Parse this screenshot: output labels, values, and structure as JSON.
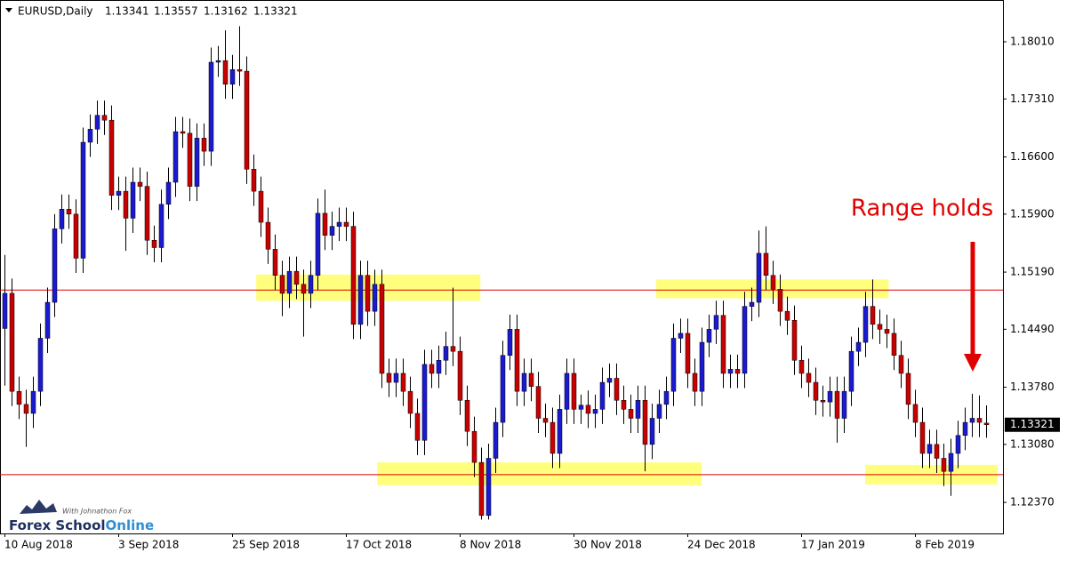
{
  "chart_data": {
    "type": "candlestick",
    "symbol": "EURUSD,Daily",
    "categories": [
      "10 Aug 2018",
      null,
      null,
      null,
      null,
      null,
      null,
      null,
      null,
      null,
      null,
      null,
      null,
      null,
      null,
      null,
      "3 Sep 2018",
      null,
      null,
      null,
      null,
      null,
      null,
      null,
      null,
      null,
      null,
      null,
      null,
      null,
      null,
      null,
      "25 Sep 2018",
      null,
      null,
      null,
      null,
      null,
      null,
      null,
      null,
      null,
      null,
      null,
      null,
      null,
      null,
      null,
      "17 Oct 2018",
      null,
      null,
      null,
      null,
      null,
      null,
      null,
      null,
      null,
      null,
      null,
      null,
      null,
      null,
      null,
      "8 Nov 2018",
      null,
      null,
      null,
      null,
      null,
      null,
      null,
      null,
      null,
      null,
      null,
      null,
      null,
      null,
      null,
      "30 Nov 2018",
      null,
      null,
      null,
      null,
      null,
      null,
      null,
      null,
      null,
      null,
      null,
      null,
      null,
      null,
      null,
      "24 Dec 2018",
      null,
      null,
      null,
      null,
      null,
      null,
      null,
      null,
      null,
      null,
      null,
      null,
      null,
      null,
      null,
      "17 Jan 2019",
      null,
      null,
      null,
      null,
      null,
      null,
      null,
      null,
      null,
      null,
      null,
      null,
      null,
      null,
      null,
      "8 Feb 2019",
      null,
      null,
      null,
      null,
      null,
      null,
      null,
      null,
      null,
      null
    ],
    "open": [
      1.145,
      1.1493,
      1.1373,
      1.1357,
      1.1346,
      1.1373,
      1.1438,
      1.1482,
      1.1572,
      1.1596,
      1.159,
      1.1536,
      1.1678,
      1.1694,
      1.1711,
      1.1705,
      1.1613,
      1.1618,
      1.1585,
      1.1629,
      1.1624,
      1.1558,
      1.1549,
      1.1602,
      1.1629,
      1.1691,
      1.1689,
      1.1624,
      1.1683,
      1.1667,
      1.1776,
      1.1778,
      1.1749,
      1.1767,
      1.1765,
      1.1645,
      1.1618,
      1.158,
      1.1547,
      1.1515,
      1.1493,
      1.152,
      1.1504,
      1.1493,
      1.1515,
      1.1591,
      1.1564,
      1.1575,
      1.158,
      1.1575,
      1.1455,
      1.1515,
      1.1471,
      1.1504,
      1.1395,
      1.1384,
      1.1395,
      1.1373,
      1.1346,
      1.1313,
      1.1406,
      1.1395,
      1.1411,
      1.1428,
      1.1422,
      1.1362,
      1.1324,
      1.1286,
      1.1221,
      1.1291,
      1.1335,
      1.1417,
      1.1449,
      1.1373,
      1.1395,
      1.1379,
      1.134,
      1.1335,
      1.1297,
      1.1351,
      1.1395,
      1.1351,
      1.1356,
      1.1346,
      1.1351,
      1.1384,
      1.1389,
      1.1362,
      1.1351,
      1.134,
      1.1362,
      1.1308,
      1.134,
      1.1357,
      1.1373,
      1.1438,
      1.1444,
      1.1395,
      1.1373,
      1.1433,
      1.1449,
      1.1466,
      1.1395,
      1.14,
      1.1395,
      1.1477,
      1.1482,
      1.1542,
      1.1515,
      1.1498,
      1.1471,
      1.146,
      1.1411,
      1.1395,
      1.1384,
      1.1362,
      1.136,
      1.1373,
      1.134,
      1.1373,
      1.1422,
      1.1433,
      1.1477,
      1.1455,
      1.1449,
      1.1444,
      1.1417,
      1.1395,
      1.1357,
      1.1335,
      1.1297,
      1.1308,
      1.1291,
      1.1275,
      1.1297,
      1.1319,
      1.1335,
      1.134,
      1.13341
    ],
    "high": [
      1.154,
      1.1511,
      1.1391,
      1.1375,
      1.1391,
      1.1456,
      1.15,
      1.159,
      1.1614,
      1.1614,
      1.1608,
      1.1696,
      1.1712,
      1.1729,
      1.1729,
      1.1723,
      1.1636,
      1.1636,
      1.1647,
      1.1647,
      1.1642,
      1.1576,
      1.162,
      1.1647,
      1.1709,
      1.1709,
      1.1707,
      1.1701,
      1.1701,
      1.1794,
      1.1796,
      1.1815,
      1.1785,
      1.182,
      1.1783,
      1.1663,
      1.1636,
      1.1598,
      1.1565,
      1.1533,
      1.1538,
      1.1538,
      1.1522,
      1.1533,
      1.1609,
      1.162,
      1.1593,
      1.1598,
      1.1598,
      1.1593,
      1.1533,
      1.1533,
      1.1522,
      1.1522,
      1.1413,
      1.1413,
      1.1413,
      1.1391,
      1.1364,
      1.1424,
      1.1424,
      1.1429,
      1.1446,
      1.15,
      1.144,
      1.138,
      1.1342,
      1.1304,
      1.1309,
      1.1353,
      1.1435,
      1.1467,
      1.1467,
      1.1413,
      1.1413,
      1.1397,
      1.1358,
      1.1353,
      1.1369,
      1.1413,
      1.1413,
      1.1369,
      1.1374,
      1.1369,
      1.1402,
      1.1407,
      1.1407,
      1.138,
      1.1369,
      1.138,
      1.138,
      1.1358,
      1.1375,
      1.1391,
      1.1456,
      1.1462,
      1.1462,
      1.1413,
      1.1451,
      1.1467,
      1.1484,
      1.1484,
      1.1418,
      1.1418,
      1.1495,
      1.15,
      1.157,
      1.1575,
      1.1533,
      1.1516,
      1.1489,
      1.1478,
      1.1429,
      1.1413,
      1.1402,
      1.138,
      1.1391,
      1.1391,
      1.1391,
      1.144,
      1.1451,
      1.1495,
      1.151,
      1.1473,
      1.1467,
      1.1462,
      1.1435,
      1.1413,
      1.1375,
      1.1353,
      1.1326,
      1.1326,
      1.1309,
      1.1315,
      1.1337,
      1.1353,
      1.137,
      1.1368,
      1.13557
    ],
    "low": [
      1.138,
      1.1355,
      1.1339,
      1.1305,
      1.1328,
      1.1355,
      1.142,
      1.1464,
      1.1554,
      1.1572,
      1.1518,
      1.1518,
      1.166,
      1.1676,
      1.1687,
      1.1595,
      1.1595,
      1.1545,
      1.1567,
      1.1606,
      1.154,
      1.1531,
      1.1531,
      1.1584,
      1.1611,
      1.1671,
      1.1606,
      1.1606,
      1.1649,
      1.1649,
      1.1758,
      1.1731,
      1.1731,
      1.1747,
      1.1627,
      1.16,
      1.1562,
      1.1529,
      1.1497,
      1.1465,
      1.1475,
      1.1486,
      1.144,
      1.1475,
      1.1497,
      1.1546,
      1.1546,
      1.1557,
      1.1557,
      1.1437,
      1.1437,
      1.1453,
      1.1453,
      1.1377,
      1.1366,
      1.1366,
      1.1355,
      1.1328,
      1.1295,
      1.1295,
      1.1377,
      1.1377,
      1.1393,
      1.1404,
      1.1344,
      1.1306,
      1.1268,
      1.1216,
      1.1216,
      1.1273,
      1.1317,
      1.1399,
      1.1355,
      1.1355,
      1.1361,
      1.1322,
      1.1317,
      1.1279,
      1.1279,
      1.1333,
      1.1333,
      1.1333,
      1.1328,
      1.1328,
      1.1333,
      1.1366,
      1.1344,
      1.1333,
      1.1322,
      1.1322,
      1.1275,
      1.129,
      1.1322,
      1.1339,
      1.1355,
      1.142,
      1.1377,
      1.1355,
      1.1355,
      1.1415,
      1.1431,
      1.1377,
      1.1377,
      1.1377,
      1.1377,
      1.1459,
      1.1464,
      1.1497,
      1.148,
      1.1453,
      1.1442,
      1.1393,
      1.1377,
      1.1366,
      1.1344,
      1.1342,
      1.1342,
      1.131,
      1.1322,
      1.1355,
      1.1404,
      1.1415,
      1.1437,
      1.1431,
      1.1426,
      1.1399,
      1.1377,
      1.1339,
      1.1317,
      1.1279,
      1.1279,
      1.1273,
      1.1257,
      1.1245,
      1.1279,
      1.1301,
      1.1317,
      1.1317,
      1.13162
    ],
    "close": [
      1.1493,
      1.1373,
      1.1357,
      1.1346,
      1.1373,
      1.1438,
      1.1482,
      1.1572,
      1.1596,
      1.159,
      1.1536,
      1.1678,
      1.1694,
      1.1711,
      1.1705,
      1.1613,
      1.1618,
      1.1585,
      1.1629,
      1.1624,
      1.1558,
      1.1549,
      1.1602,
      1.1629,
      1.1691,
      1.1689,
      1.1624,
      1.1683,
      1.1667,
      1.1776,
      1.1778,
      1.1749,
      1.1767,
      1.1765,
      1.1645,
      1.1618,
      1.158,
      1.1547,
      1.1515,
      1.1493,
      1.152,
      1.1504,
      1.1493,
      1.1515,
      1.1591,
      1.1564,
      1.1575,
      1.158,
      1.1575,
      1.1455,
      1.1515,
      1.1471,
      1.1504,
      1.1395,
      1.1384,
      1.1395,
      1.1373,
      1.1346,
      1.1313,
      1.1406,
      1.1395,
      1.1411,
      1.1428,
      1.1422,
      1.1362,
      1.1324,
      1.1286,
      1.1221,
      1.1291,
      1.1335,
      1.1417,
      1.1449,
      1.1373,
      1.1395,
      1.1379,
      1.134,
      1.1335,
      1.1297,
      1.1351,
      1.1395,
      1.1351,
      1.1356,
      1.1346,
      1.1351,
      1.1384,
      1.1389,
      1.1362,
      1.1351,
      1.134,
      1.1362,
      1.1308,
      1.134,
      1.1357,
      1.1373,
      1.1438,
      1.1444,
      1.1395,
      1.1373,
      1.1433,
      1.1449,
      1.1466,
      1.1395,
      1.14,
      1.1395,
      1.1477,
      1.1482,
      1.1542,
      1.1515,
      1.1498,
      1.1471,
      1.146,
      1.1411,
      1.1395,
      1.1384,
      1.1362,
      1.136,
      1.1373,
      1.134,
      1.1373,
      1.1422,
      1.1433,
      1.1477,
      1.1455,
      1.1449,
      1.1444,
      1.1417,
      1.1395,
      1.1357,
      1.1335,
      1.1297,
      1.1308,
      1.1291,
      1.1275,
      1.1297,
      1.1319,
      1.1335,
      1.134,
      1.1335,
      1.13321
    ],
    "up_color": "#1a1ad0",
    "down_color": "#c80000",
    "wick_color": "#000000",
    "ylim": [
      1.1199,
      1.185
    ],
    "yticks": [
      {
        "value": 1.1801,
        "label": "1.18010"
      },
      {
        "value": 1.1731,
        "label": "1.17310"
      },
      {
        "value": 1.166,
        "label": "1.16600"
      },
      {
        "value": 1.159,
        "label": "1.15900"
      },
      {
        "value": 1.1519,
        "label": "1.15190"
      },
      {
        "value": 1.1449,
        "label": "1.14490"
      },
      {
        "value": 1.1378,
        "label": "1.13780"
      },
      {
        "value": 1.1308,
        "label": "1.13080"
      },
      {
        "value": 1.1237,
        "label": "1.12370"
      }
    ],
    "hlines": [
      1.1497,
      1.1271
    ],
    "hline_color": "#e00000",
    "zones": [
      {
        "x": [
          35.4,
          66.9
        ],
        "y": [
          1.1484,
          1.1516
        ]
      },
      {
        "x": [
          52.4,
          98.0
        ],
        "y": [
          1.1258,
          1.1286
        ]
      },
      {
        "x": [
          91.6,
          124.3
        ],
        "y": [
          1.1487,
          1.151
        ]
      },
      {
        "x": [
          121.0,
          139.6
        ],
        "y": [
          1.1259,
          1.1283
        ]
      }
    ],
    "zone_color": "#ffff66",
    "annotation": "Range holds",
    "annotation_color": "#e00000",
    "watermark": {
      "tagline": "With Johnathon Fox",
      "brand": "Forex School",
      "brand_accent": "Online"
    }
  }
}
